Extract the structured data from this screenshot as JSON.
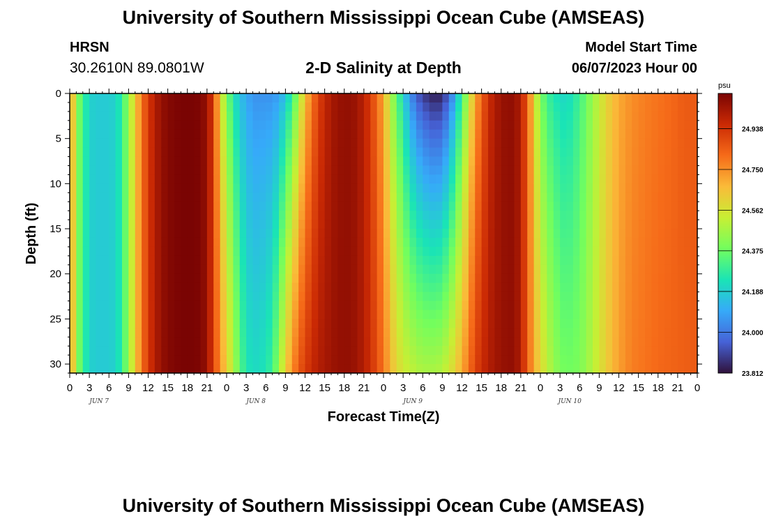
{
  "page": {
    "title_top": "University of Southern Mississippi Ocean Cube (AMSEAS)",
    "title_bottom": "University of Southern Mississippi Ocean Cube (AMSEAS)",
    "station_id": "HRSN",
    "station_coords": "30.2610N  89.0801W",
    "plot_subtitle": "2-D Salinity at Depth",
    "model_start_label": "Model Start Time",
    "model_start_value": "06/07/2023 Hour 00"
  },
  "chart_data": {
    "type": "heatmap",
    "xlabel": "Forecast Time(Z)",
    "ylabel": "Depth (ft)",
    "x_range_hours": [
      0,
      96
    ],
    "ylim": [
      0,
      31
    ],
    "y_ticks": [
      0,
      5,
      10,
      15,
      20,
      25,
      30
    ],
    "x_tick_labels": [
      "0",
      "3",
      "6",
      "9",
      "12",
      "15",
      "18",
      "21",
      "0",
      "3",
      "6",
      "9",
      "12",
      "15",
      "18",
      "21",
      "0",
      "3",
      "6",
      "9",
      "12",
      "15",
      "18",
      "21",
      "0",
      "3",
      "6",
      "9",
      "12",
      "15",
      "18",
      "21",
      "0"
    ],
    "day_labels": [
      "JUN 7",
      "JUN 8",
      "JUN 9",
      "JUN 10"
    ],
    "colorbar": {
      "unit": "psu",
      "min": 23.812,
      "max": 25.1,
      "tick_values": [
        24.938,
        24.75,
        24.562,
        24.375,
        24.188,
        24.0,
        23.812
      ],
      "tick_labels": [
        "24.938",
        "24.750",
        "24.562",
        "24.375",
        "24.188",
        "24.000",
        "23.812"
      ],
      "colors": [
        "#30123b",
        "#4662d7",
        "#36aaf9",
        "#1ae4b6",
        "#72fe5e",
        "#c7ef34",
        "#fabb39",
        "#f66b19",
        "#cb2a04",
        "#7a0403"
      ]
    },
    "surface_profile": {
      "hours": [
        0,
        1,
        2,
        3,
        4,
        5,
        6,
        7,
        8,
        9,
        10,
        11,
        12,
        13,
        14,
        15,
        16,
        17,
        18,
        19,
        20,
        21,
        22,
        23,
        24,
        25,
        26,
        27,
        28,
        29,
        30,
        31,
        32,
        33,
        34,
        35,
        36,
        38,
        40,
        42,
        44,
        46,
        48,
        49,
        50,
        51,
        52,
        53,
        54,
        55,
        56,
        57,
        58,
        59,
        60,
        61,
        62,
        64,
        66,
        68,
        69,
        70,
        71,
        72,
        73,
        74,
        75,
        76,
        78,
        80,
        82,
        84,
        86,
        88,
        90,
        92,
        94,
        96
      ],
      "values": [
        24.8,
        24.45,
        24.3,
        24.2,
        24.18,
        24.18,
        24.18,
        24.2,
        24.28,
        24.45,
        24.62,
        24.8,
        24.92,
        25.0,
        25.05,
        25.08,
        25.09,
        25.1,
        25.1,
        25.1,
        25.09,
        25.05,
        24.9,
        24.6,
        24.4,
        24.25,
        24.15,
        24.1,
        24.05,
        24.05,
        24.05,
        24.05,
        24.08,
        24.15,
        24.28,
        24.45,
        24.65,
        24.9,
        25.02,
        25.06,
        25.04,
        24.92,
        24.7,
        24.5,
        24.35,
        24.2,
        24.05,
        23.95,
        23.88,
        23.85,
        23.82,
        23.85,
        23.95,
        24.1,
        24.3,
        24.5,
        24.7,
        24.95,
        25.05,
        25.06,
        25.0,
        24.85,
        24.6,
        24.4,
        24.3,
        24.25,
        24.22,
        24.2,
        24.3,
        24.45,
        24.6,
        24.7,
        24.75,
        24.78,
        24.8,
        24.82,
        24.85,
        24.85
      ]
    },
    "bottom_profile": {
      "hours": [
        0,
        1,
        2,
        3,
        4,
        5,
        6,
        7,
        8,
        9,
        10,
        11,
        12,
        13,
        14,
        15,
        16,
        17,
        18,
        19,
        20,
        21,
        22,
        23,
        24,
        25,
        26,
        27,
        28,
        29,
        30,
        31,
        32,
        33,
        34,
        35,
        36,
        38,
        40,
        42,
        44,
        46,
        48,
        49,
        50,
        51,
        52,
        53,
        54,
        55,
        56,
        57,
        58,
        59,
        60,
        61,
        62,
        64,
        66,
        68,
        69,
        70,
        71,
        72,
        73,
        74,
        75,
        76,
        78,
        80,
        82,
        84,
        86,
        88,
        90,
        92,
        94,
        96
      ],
      "values": [
        24.8,
        24.45,
        24.3,
        24.2,
        24.18,
        24.18,
        24.18,
        24.2,
        24.28,
        24.45,
        24.62,
        24.8,
        24.92,
        25.0,
        25.05,
        25.08,
        25.09,
        25.1,
        25.1,
        25.1,
        25.09,
        25.05,
        24.9,
        24.75,
        24.62,
        24.5,
        24.35,
        24.25,
        24.22,
        24.22,
        24.25,
        24.3,
        24.45,
        24.62,
        24.75,
        24.85,
        24.92,
        25.0,
        25.04,
        25.06,
        25.04,
        24.95,
        24.8,
        24.68,
        24.6,
        24.55,
        24.52,
        24.5,
        24.48,
        24.48,
        24.48,
        24.5,
        24.55,
        24.62,
        24.7,
        24.8,
        24.9,
        25.0,
        25.05,
        25.06,
        25.0,
        24.85,
        24.7,
        24.6,
        24.52,
        24.45,
        24.4,
        24.38,
        24.4,
        24.5,
        24.62,
        24.72,
        24.78,
        24.8,
        24.82,
        24.83,
        24.84,
        24.85
      ]
    }
  }
}
